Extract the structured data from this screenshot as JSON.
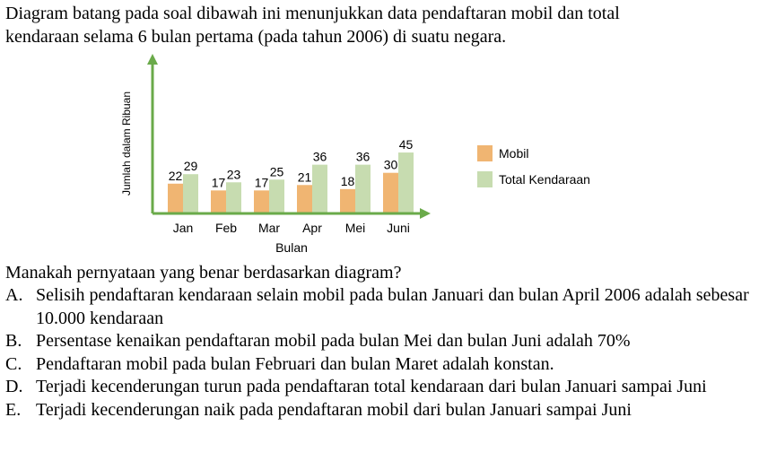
{
  "intro": {
    "line1": "Diagram batang pada soal dibawah ini menunjukkan data pendaftaran mobil dan total",
    "line2": "kendaraan selama 6 bulan pertama (pada tahun 2006) di suatu negara."
  },
  "chart_data": {
    "type": "bar",
    "categories": [
      "Jan",
      "Feb",
      "Mar",
      "Apr",
      "Mei",
      "Juni"
    ],
    "series": [
      {
        "name": "Mobil",
        "values": [
          22,
          17,
          17,
          21,
          18,
          30
        ],
        "color": "#f0b572"
      },
      {
        "name": "Total Kendaraan",
        "values": [
          29,
          23,
          25,
          36,
          36,
          45
        ],
        "color": "#c7dcb0"
      }
    ],
    "xlabel": "Bulan",
    "ylabel": "Jumlah dalam Ribuan",
    "ylim": [
      0,
      50
    ],
    "axis_color": "#6aaa4a",
    "grid": false,
    "legend_position": "right"
  },
  "question": "Manakah pernyataan yang benar berdasarkan diagram?",
  "options": [
    {
      "letter": "A.",
      "text": "Selisih pendaftaran kendaraan selain mobil pada bulan Januari dan bulan April 2006 adalah sebesar 10.000 kendaraan"
    },
    {
      "letter": "B.",
      "text": "Persentase kenaikan pendaftaran mobil pada bulan Mei dan bulan Juni adalah 70%"
    },
    {
      "letter": "C.",
      "text": "Pendaftaran mobil pada bulan Februari dan bulan Maret adalah konstan."
    },
    {
      "letter": "D.",
      "text": "Terjadi kecenderungan turun pada pendaftaran total kendaraan dari bulan Januari sampai Juni"
    },
    {
      "letter": "E.",
      "text": "Terjadi kecenderungan naik pada pendaftaran mobil dari bulan Januari sampai Juni"
    }
  ]
}
